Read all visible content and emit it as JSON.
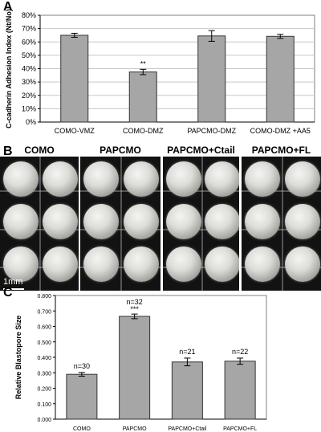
{
  "panel_labels": {
    "a": "A",
    "b": "B",
    "c": "C"
  },
  "photo_panels": {
    "titles": [
      "COMO",
      "PAPCMO",
      "PAPCMO+Ctail",
      "PAPCMO+FL"
    ],
    "scale_label": "1mm"
  },
  "colors": {
    "bar": "#a6a6a6",
    "bar_stroke": "#333333",
    "plot_bg": "#ffffff",
    "grid": "#c8c8c8"
  },
  "chart_data": [
    {
      "type": "bar",
      "categories": [
        "COMO-VMZ",
        "COMO-DMZ",
        "PAPCMO-DMZ",
        "COMO-DMZ +AA5"
      ],
      "values": [
        65,
        37.5,
        64.5,
        64.2
      ],
      "errors": [
        1.5,
        2,
        4,
        1.5
      ],
      "annotations": [
        "",
        "**",
        "",
        ""
      ],
      "ylabel": "C-cadherin Adhesion Index (Nt/No)",
      "ylim": [
        0,
        80
      ],
      "yticks": [
        "0%",
        "10%",
        "20%",
        "30%",
        "40%",
        "50%",
        "60%",
        "70%",
        "80%"
      ],
      "grid": true
    },
    {
      "type": "bar",
      "categories": [
        "COMO",
        "PAPCMO",
        "PAPCMO+Ctail",
        "PAPCMO+FL"
      ],
      "values": [
        0.29,
        0.665,
        0.37,
        0.375
      ],
      "errors": [
        0.012,
        0.015,
        0.025,
        0.02
      ],
      "annotations": [
        "n=30",
        "n=32",
        "n=21",
        "n=22"
      ],
      "significance": [
        "",
        "***",
        "",
        ""
      ],
      "ylabel": "Relative Blastopore Size",
      "ylim": [
        0,
        0.8
      ],
      "yticks": [
        "0.000",
        "0.100",
        "0.200",
        "0.300",
        "0.400",
        "0.500",
        "0.600",
        "0.700",
        "0.800"
      ],
      "grid": false
    }
  ]
}
